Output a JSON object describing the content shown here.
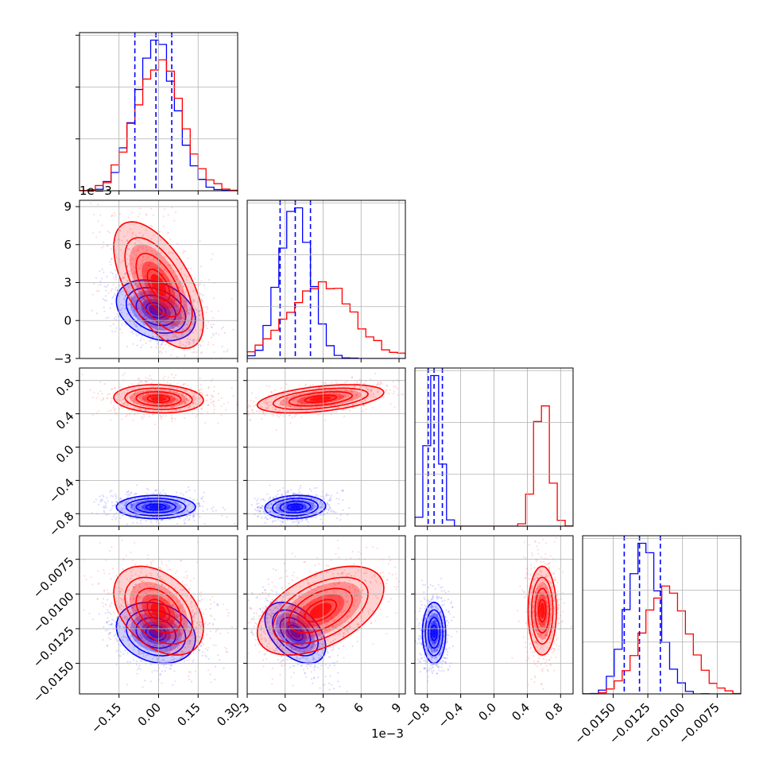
{
  "figure": {
    "type": "corner-plot",
    "grid_on": true,
    "legend": "none",
    "colors": {
      "series_a": "#0000ff",
      "series_b": "#ff0000",
      "frame": "#000000",
      "grid": "#b0b0b0"
    }
  },
  "chart_data": {
    "type": "corner",
    "parameters": [
      {
        "range": [
          -0.3,
          0.3
        ],
        "ticks": [
          -0.15,
          0.0,
          0.15,
          0.3
        ],
        "tick_labels": [
          "−0.15",
          "0.00",
          "0.15",
          "0.30"
        ]
      },
      {
        "range": [
          -0.003,
          0.0095
        ],
        "ticks": [
          -0.003,
          0,
          0.003,
          0.006,
          0.009
        ],
        "tick_labels": [
          "−3",
          "0",
          "3",
          "6",
          "9"
        ],
        "offset_label": "1e−3"
      },
      {
        "range": [
          -0.95,
          0.95
        ],
        "ticks": [
          -0.8,
          -0.4,
          0.0,
          0.4,
          0.8
        ],
        "tick_labels": [
          "−0.8",
          "−0.4",
          "0.0",
          "0.4",
          "0.8"
        ]
      },
      {
        "range": [
          -0.0172,
          -0.0058
        ],
        "ticks": [
          -0.015,
          -0.0125,
          -0.01,
          -0.0075
        ],
        "tick_labels": [
          "−0.0150",
          "−0.0125",
          "−0.0100",
          "−0.0075"
        ]
      }
    ],
    "series": [
      {
        "color": "#0000ff",
        "mean": [
          -0.01,
          0.0008,
          -0.72,
          -0.0128
        ],
        "sd": [
          0.075,
          0.0012,
          0.07,
          0.0011
        ],
        "corr": {
          "0-1": -0.3,
          "0-2": 0.0,
          "0-3": -0.2,
          "1-2": 0.1,
          "1-3": -0.45,
          "2-3": 0.0
        },
        "quantiles_16_50_84": [
          [
            -0.09,
            -0.01,
            0.05
          ],
          [
            -0.0004,
            0.0008,
            0.002
          ],
          [
            -0.79,
            -0.72,
            -0.62
          ],
          [
            -0.0142,
            -0.0131,
            -0.0116
          ]
        ]
      },
      {
        "color": "#ff0000",
        "mean": [
          0.0,
          0.0028,
          0.58,
          -0.0112
        ],
        "sd": [
          0.085,
          0.0025,
          0.085,
          0.0016
        ],
        "corr": {
          "0-1": -0.6,
          "0-2": -0.1,
          "0-3": -0.4,
          "1-2": 0.45,
          "1-3": 0.5,
          "2-3": 0.0
        }
      }
    ]
  }
}
